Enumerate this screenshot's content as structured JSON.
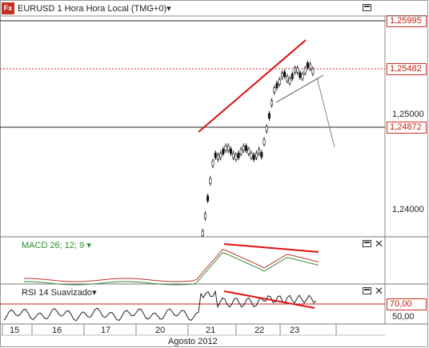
{
  "header": {
    "logo": "Fx",
    "title": "EURUSD 1 Hora Hora Local (TMG+0)",
    "caret": "▾"
  },
  "price_axis": {
    "labels": [
      "1,25000",
      "1,24000"
    ],
    "boxes": [
      {
        "value": "1,25995",
        "color": "#c02010"
      },
      {
        "value": "1,25482",
        "color": "#c02010"
      },
      {
        "value": "1,24872",
        "color": "#c02010"
      }
    ]
  },
  "macd": {
    "label": "MACD 26; 12; 9",
    "caret": "▾",
    "color": "#2a8a2a"
  },
  "rsi": {
    "label": "RSI 14 Suavizado",
    "caret": "▾",
    "level_high": "70,00",
    "level_mid": "50,00"
  },
  "time_axis": {
    "days": [
      "15",
      "16",
      "17",
      "20",
      "21",
      "22",
      "23"
    ],
    "month": "Agosto 2012"
  },
  "colors": {
    "trendline": "#e01010",
    "candle": "#111111",
    "candle_up": "#ffffff"
  }
}
